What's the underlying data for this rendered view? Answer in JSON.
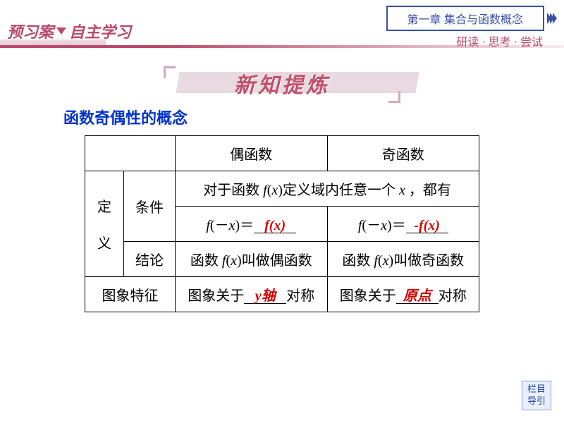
{
  "header": {
    "chapter": "第一章  集合与函数概念",
    "sub_banner": "研读 · 思考 · 尝试",
    "left_part1": "预习案",
    "left_part2": "自主学习"
  },
  "title": "新知提炼",
  "section_heading": "函数奇偶性的概念",
  "table": {
    "col1": "偶函数",
    "col2": "奇函数",
    "rh_def1": "定",
    "rh_def2": "义",
    "sh_cond": "条件",
    "sh_conc": "结论",
    "rh_graph": "图象特征",
    "cond_prefix": "对于函数 ",
    "cond_mid": "定义域内任意一个 ",
    "cond_suffix": " ，都有",
    "f_neg_x_eq": "(－",
    "eq_close": ")＝",
    "answer_even": "f(x)",
    "answer_odd": "-f(x)",
    "conc_prefix": "函数 ",
    "conc_even": "叫做偶函数",
    "conc_odd": "叫做奇函数",
    "graph_prefix": "图象关于",
    "graph_suffix": "对称",
    "graph_even_ans": "y轴",
    "graph_odd_ans": "原点"
  },
  "nav": {
    "line1": "栏目",
    "line2": "导引"
  }
}
